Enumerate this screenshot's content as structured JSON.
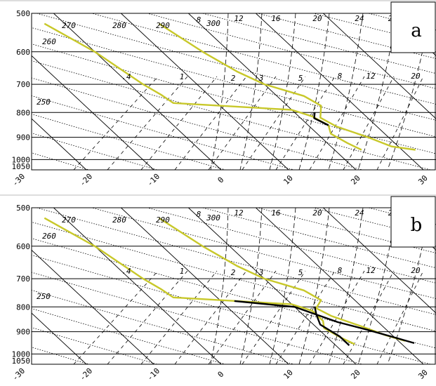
{
  "chart_data": [
    {
      "type": "line",
      "panel_label": "a",
      "pressure_ticks": [
        "500",
        "600",
        "700",
        "800",
        "900",
        "1000",
        "1050"
      ],
      "temp_ticks": [
        "-30",
        "-20",
        "-10",
        "0",
        "10",
        "20",
        "30"
      ],
      "theta_labels": [
        "250",
        "260",
        "270",
        "280",
        "290",
        "300"
      ],
      "theta_e_labels": [
        "8",
        "12",
        "16",
        "20",
        "24",
        "2"
      ],
      "mixing_ratio_labels": [
        ".4",
        "1",
        "2",
        "3",
        "5",
        "8",
        "12",
        "20"
      ],
      "axes": {
        "pressure_range": [
          500,
          1050
        ],
        "temperature_range": [
          -30,
          35
        ],
        "y_scale": "log"
      },
      "series": [
        {
          "color": "#c8c82a",
          "points": [
            [
              -3,
              525
            ],
            [
              0,
              600
            ],
            [
              2,
              700
            ],
            [
              3,
              735
            ],
            [
              3.5,
              765
            ],
            [
              20,
              790
            ],
            [
              22,
              815
            ],
            [
              23,
              850
            ],
            [
              22,
              885
            ],
            [
              23,
              925
            ],
            [
              24,
              955
            ]
          ]
        },
        {
          "color": "#c8c82a",
          "points": [
            [
              14,
              525
            ],
            [
              16,
              600
            ],
            [
              18,
              660
            ],
            [
              20,
              700
            ],
            [
              24,
              740
            ],
            [
              25,
              775
            ],
            [
              23,
              820
            ],
            [
              24,
              855
            ],
            [
              27,
              900
            ],
            [
              29,
              940
            ],
            [
              32,
              955
            ]
          ]
        },
        {
          "color": "#000000",
          "points": [
            [
              23,
              800
            ],
            [
              22,
              822
            ],
            [
              23,
              850
            ]
          ]
        }
      ]
    },
    {
      "type": "line",
      "panel_label": "b",
      "pressure_ticks": [
        "500",
        "600",
        "700",
        "800",
        "900",
        "1000",
        "1050"
      ],
      "temp_ticks": [
        "-30",
        "-20",
        "-10",
        "0",
        "10",
        "20",
        "30"
      ],
      "theta_labels": [
        "250",
        "260",
        "270",
        "280",
        "290",
        "300"
      ],
      "theta_e_labels": [
        "8",
        "12",
        "16",
        "20",
        "24",
        "2"
      ],
      "mixing_ratio_labels": [
        ".4",
        "1",
        "2",
        "3",
        "5",
        "8",
        "12",
        "20"
      ],
      "axes": {
        "pressure_range": [
          500,
          1050
        ],
        "temperature_range": [
          -30,
          35
        ],
        "y_scale": "log"
      },
      "series": [
        {
          "color": "#c8c82a",
          "points": [
            [
              -3,
              525
            ],
            [
              0,
              600
            ],
            [
              2,
              700
            ],
            [
              3,
              735
            ],
            [
              3.5,
              765
            ],
            [
              20,
              790
            ],
            [
              22,
              815
            ],
            [
              22,
              855
            ],
            [
              21,
              885
            ],
            [
              22,
              925
            ],
            [
              23,
              955
            ]
          ]
        },
        {
          "color": "#c8c82a",
          "points": [
            [
              14,
              525
            ],
            [
              16,
              600
            ],
            [
              18,
              660
            ],
            [
              20,
              700
            ],
            [
              24,
              740
            ],
            [
              25,
              775
            ],
            [
              23,
              805
            ],
            [
              24,
              835
            ],
            [
              27,
              880
            ],
            [
              29,
              915
            ],
            [
              31,
              940
            ]
          ]
        },
        {
          "color": "#000000",
          "points": [
            [
              12,
              778
            ],
            [
              20,
              800
            ],
            [
              22,
              830
            ],
            [
              21,
              870
            ],
            [
              22,
              920
            ],
            [
              22,
              960
            ]
          ]
        },
        {
          "color": "#000000",
          "points": [
            [
              23,
              800
            ],
            [
              22,
              830
            ],
            [
              24,
              860
            ],
            [
              27,
              890
            ],
            [
              30,
              925
            ],
            [
              32,
              950
            ]
          ]
        }
      ]
    }
  ]
}
